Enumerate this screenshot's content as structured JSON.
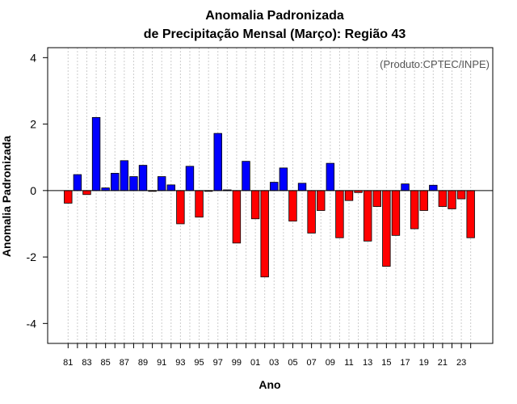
{
  "chart_data": {
    "type": "bar",
    "title_line1": "Anomalia Padronizada",
    "title_line2": "de Precipitação Mensal (Março): Região 43",
    "xlabel": "Ano",
    "ylabel": "Anomalia Padronizada",
    "credit": "(Produto:CPTEC/INPE)",
    "ylim": [
      -4.6,
      4.3
    ],
    "yticks": [
      -4,
      -2,
      0,
      2,
      4
    ],
    "ytick_labels": [
      "-4",
      "-2",
      "0",
      "2",
      "4"
    ],
    "xtick_labels": [
      "81",
      "83",
      "85",
      "87",
      "89",
      "91",
      "93",
      "95",
      "97",
      "99",
      "01",
      "03",
      "05",
      "07",
      "09",
      "11",
      "13",
      "15",
      "17",
      "19",
      "21",
      "23"
    ],
    "colors": {
      "positive": "#0000ff",
      "negative": "#ff0000",
      "grid": "#cccccc",
      "zero_line": "#000000"
    },
    "categories": [
      "1981",
      "1982",
      "1983",
      "1984",
      "1985",
      "1986",
      "1987",
      "1988",
      "1989",
      "1990",
      "1991",
      "1992",
      "1993",
      "1994",
      "1995",
      "1996",
      "1997",
      "1998",
      "1999",
      "2000",
      "2001",
      "2002",
      "2003",
      "2004",
      "2005",
      "2006",
      "2007",
      "2008",
      "2009",
      "2010",
      "2011",
      "2012",
      "2013",
      "2014",
      "2015",
      "2016",
      "2017",
      "2018",
      "2019",
      "2020",
      "2021",
      "2022",
      "2023",
      "2024"
    ],
    "values": [
      -0.38,
      0.48,
      -0.12,
      2.2,
      0.08,
      0.52,
      0.9,
      0.42,
      0.76,
      -0.02,
      0.42,
      0.17,
      -1.0,
      0.73,
      -0.8,
      -0.02,
      1.72,
      0.02,
      -1.58,
      0.88,
      -0.85,
      -2.6,
      0.25,
      0.68,
      -0.92,
      0.22,
      -1.28,
      -0.6,
      0.82,
      -1.42,
      -0.3,
      -0.06,
      -1.52,
      -0.48,
      -2.28,
      -1.35,
      0.2,
      -1.15,
      -0.6,
      0.16,
      -0.48,
      -0.55,
      -0.25,
      -1.42
    ]
  }
}
